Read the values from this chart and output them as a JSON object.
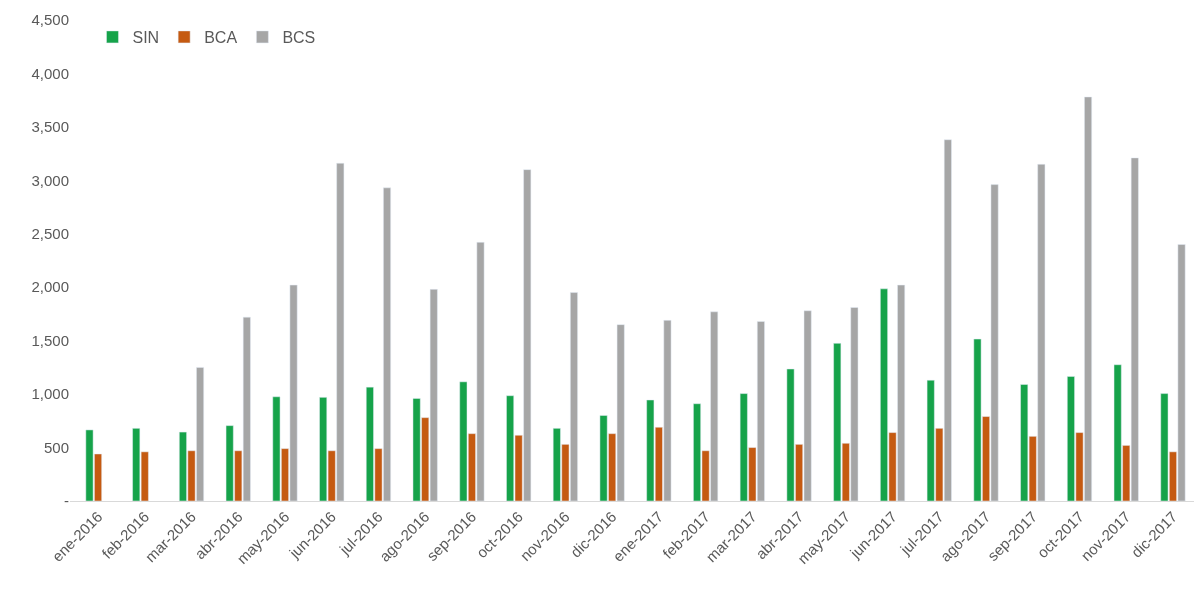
{
  "chart_data": {
    "type": "bar",
    "categories": [
      "ene-2016",
      "feb-2016",
      "mar-2016",
      "abr-2016",
      "may-2016",
      "jun-2016",
      "jul-2016",
      "ago-2016",
      "sep-2016",
      "oct-2016",
      "nov-2016",
      "dic-2016",
      "ene-2017",
      "feb-2017",
      "mar-2017",
      "abr-2017",
      "may-2017",
      "jun-2017",
      "jul-2017",
      "ago-2017",
      "sep-2017",
      "oct-2017",
      "nov-2017",
      "dic-2017"
    ],
    "series": [
      {
        "name": "SIN",
        "color": "#16a34a",
        "values": [
          665,
          680,
          645,
          705,
          975,
          970,
          1065,
          960,
          1115,
          985,
          680,
          800,
          945,
          910,
          1005,
          1235,
          1475,
          1985,
          1130,
          1515,
          1090,
          1165,
          1275,
          1005
        ]
      },
      {
        "name": "BCA",
        "color": "#c55a11",
        "values": [
          440,
          460,
          470,
          470,
          490,
          470,
          490,
          780,
          630,
          615,
          530,
          630,
          690,
          470,
          500,
          530,
          540,
          640,
          680,
          790,
          605,
          640,
          520,
          460
        ]
      },
      {
        "name": "BCS",
        "color": "#a6a6a6",
        "values": [
          null,
          null,
          1250,
          1720,
          2020,
          3160,
          2930,
          1980,
          2420,
          3100,
          1950,
          1650,
          1690,
          1770,
          1680,
          1780,
          1810,
          2020,
          3380,
          2960,
          3150,
          3780,
          3210,
          2400
        ]
      }
    ],
    "ylim": [
      0,
      4500
    ],
    "yticks": [
      {
        "value": 0,
        "label": "-"
      },
      {
        "value": 500,
        "label": "500"
      },
      {
        "value": 1000,
        "label": "1,000"
      },
      {
        "value": 1500,
        "label": "1,500"
      },
      {
        "value": 2000,
        "label": "2,000"
      },
      {
        "value": 2500,
        "label": "2,500"
      },
      {
        "value": 3000,
        "label": "3,000"
      },
      {
        "value": 3500,
        "label": "3,500"
      },
      {
        "value": 4000,
        "label": "4,000"
      },
      {
        "value": 4500,
        "label": "4,500"
      }
    ],
    "grid": false,
    "legend": "top left"
  }
}
